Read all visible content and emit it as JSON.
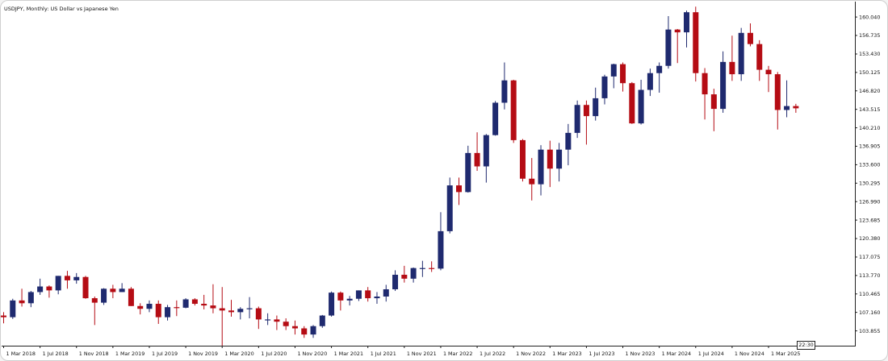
{
  "chart_title": "USDJPY, Monthly:  US Dollar vs Japanese Yen",
  "time_label": "22:30",
  "colors": {
    "up": "#1f2a6f",
    "down": "#b50c14",
    "axis": "#222222",
    "text": "#111111"
  },
  "chart_data": {
    "type": "candlestick",
    "symbol": "USDJPY",
    "timeframe": "Monthly",
    "ylim": [
      101.2,
      162.8
    ],
    "y_ticks": [
      "103.855",
      "107.160",
      "110.465",
      "113.770",
      "117.075",
      "120.380",
      "123.685",
      "126.990",
      "130.295",
      "133.600",
      "136.905",
      "140.210",
      "143.515",
      "146.820",
      "150.125",
      "153.430",
      "156.735",
      "160.040"
    ],
    "x_ticks": [
      "1 Mar 2018",
      "1 Jul 2018",
      "1 Nov 2018",
      "1 Mar 2019",
      "1 Jul 2019",
      "1 Nov 2019",
      "1 Mar 2020",
      "1 Jul 2020",
      "1 Nov 2020",
      "1 Mar 2021",
      "1 Jul 2021",
      "1 Nov 2021",
      "1 Mar 2022",
      "1 Jul 2022",
      "1 Nov 2022",
      "1 Mar 2023",
      "1 Jul 2023",
      "1 Nov 2023",
      "1 Mar 2024",
      "1 Jul 2024",
      "1 Nov 2024",
      "1 Mar 2025"
    ],
    "candles": [
      {
        "d": "2018-03",
        "o": 106.6,
        "h": 107.2,
        "l": 105.2,
        "c": 106.3
      },
      {
        "d": "2018-04",
        "o": 106.3,
        "h": 109.6,
        "l": 106.0,
        "c": 109.3
      },
      {
        "d": "2018-05",
        "o": 109.3,
        "h": 111.4,
        "l": 108.2,
        "c": 108.8
      },
      {
        "d": "2018-06",
        "o": 108.8,
        "h": 111.0,
        "l": 108.1,
        "c": 110.8
      },
      {
        "d": "2018-07",
        "o": 110.8,
        "h": 113.2,
        "l": 110.3,
        "c": 111.8
      },
      {
        "d": "2018-08",
        "o": 111.8,
        "h": 112.0,
        "l": 109.8,
        "c": 111.1
      },
      {
        "d": "2018-09",
        "o": 111.1,
        "h": 113.7,
        "l": 110.4,
        "c": 113.7
      },
      {
        "d": "2018-10",
        "o": 113.7,
        "h": 114.6,
        "l": 111.4,
        "c": 112.9
      },
      {
        "d": "2018-11",
        "o": 112.9,
        "h": 114.2,
        "l": 112.3,
        "c": 113.5
      },
      {
        "d": "2018-12",
        "o": 113.5,
        "h": 113.7,
        "l": 109.6,
        "c": 109.7
      },
      {
        "d": "2019-01",
        "o": 109.7,
        "h": 110.0,
        "l": 104.9,
        "c": 108.9
      },
      {
        "d": "2019-02",
        "o": 108.9,
        "h": 111.5,
        "l": 108.5,
        "c": 111.4
      },
      {
        "d": "2019-03",
        "o": 111.4,
        "h": 112.1,
        "l": 109.7,
        "c": 110.8
      },
      {
        "d": "2019-04",
        "o": 110.8,
        "h": 112.4,
        "l": 110.8,
        "c": 111.4
      },
      {
        "d": "2019-05",
        "o": 111.4,
        "h": 111.7,
        "l": 108.3,
        "c": 108.3
      },
      {
        "d": "2019-06",
        "o": 108.3,
        "h": 108.8,
        "l": 106.8,
        "c": 107.8
      },
      {
        "d": "2019-07",
        "o": 107.8,
        "h": 109.3,
        "l": 107.2,
        "c": 108.7
      },
      {
        "d": "2019-08",
        "o": 108.7,
        "h": 109.3,
        "l": 105.1,
        "c": 106.3
      },
      {
        "d": "2019-09",
        "o": 106.3,
        "h": 108.5,
        "l": 105.7,
        "c": 108.1
      },
      {
        "d": "2019-10",
        "o": 108.1,
        "h": 109.3,
        "l": 106.5,
        "c": 108.0
      },
      {
        "d": "2019-11",
        "o": 108.0,
        "h": 109.7,
        "l": 107.9,
        "c": 109.5
      },
      {
        "d": "2019-12",
        "o": 109.5,
        "h": 109.7,
        "l": 108.4,
        "c": 108.7
      },
      {
        "d": "2020-01",
        "o": 108.7,
        "h": 110.3,
        "l": 107.7,
        "c": 108.4
      },
      {
        "d": "2020-02",
        "o": 108.4,
        "h": 112.2,
        "l": 107.0,
        "c": 107.9
      },
      {
        "d": "2020-03",
        "o": 107.9,
        "h": 111.7,
        "l": 101.2,
        "c": 107.5
      },
      {
        "d": "2020-04",
        "o": 107.5,
        "h": 109.4,
        "l": 106.4,
        "c": 107.2
      },
      {
        "d": "2020-05",
        "o": 107.2,
        "h": 108.1,
        "l": 105.9,
        "c": 107.8
      },
      {
        "d": "2020-06",
        "o": 107.8,
        "h": 109.9,
        "l": 106.1,
        "c": 107.9
      },
      {
        "d": "2020-07",
        "o": 107.9,
        "h": 108.2,
        "l": 104.2,
        "c": 105.9
      },
      {
        "d": "2020-08",
        "o": 105.9,
        "h": 107.0,
        "l": 104.9,
        "c": 105.9
      },
      {
        "d": "2020-09",
        "o": 105.9,
        "h": 106.6,
        "l": 104.0,
        "c": 105.5
      },
      {
        "d": "2020-10",
        "o": 105.5,
        "h": 106.1,
        "l": 104.0,
        "c": 104.7
      },
      {
        "d": "2020-11",
        "o": 104.7,
        "h": 105.7,
        "l": 103.2,
        "c": 104.3
      },
      {
        "d": "2020-12",
        "o": 104.3,
        "h": 104.7,
        "l": 102.6,
        "c": 103.2
      },
      {
        "d": "2021-01",
        "o": 103.2,
        "h": 104.9,
        "l": 102.6,
        "c": 104.7
      },
      {
        "d": "2021-02",
        "o": 104.7,
        "h": 106.7,
        "l": 104.4,
        "c": 106.6
      },
      {
        "d": "2021-03",
        "o": 106.6,
        "h": 110.9,
        "l": 106.4,
        "c": 110.7
      },
      {
        "d": "2021-04",
        "o": 110.7,
        "h": 110.9,
        "l": 107.5,
        "c": 109.3
      },
      {
        "d": "2021-05",
        "o": 109.3,
        "h": 110.1,
        "l": 108.4,
        "c": 109.6
      },
      {
        "d": "2021-06",
        "o": 109.6,
        "h": 111.1,
        "l": 109.2,
        "c": 111.1
      },
      {
        "d": "2021-07",
        "o": 111.1,
        "h": 111.7,
        "l": 109.1,
        "c": 109.7
      },
      {
        "d": "2021-08",
        "o": 109.7,
        "h": 110.8,
        "l": 108.7,
        "c": 110.0
      },
      {
        "d": "2021-09",
        "o": 110.0,
        "h": 112.1,
        "l": 109.1,
        "c": 111.3
      },
      {
        "d": "2021-10",
        "o": 111.3,
        "h": 114.7,
        "l": 111.0,
        "c": 113.9
      },
      {
        "d": "2021-11",
        "o": 113.9,
        "h": 115.5,
        "l": 112.5,
        "c": 113.2
      },
      {
        "d": "2021-12",
        "o": 113.2,
        "h": 115.2,
        "l": 112.5,
        "c": 115.1
      },
      {
        "d": "2022-01",
        "o": 115.1,
        "h": 116.4,
        "l": 113.5,
        "c": 115.1
      },
      {
        "d": "2022-02",
        "o": 115.1,
        "h": 116.3,
        "l": 114.4,
        "c": 115.0
      },
      {
        "d": "2022-03",
        "o": 115.0,
        "h": 125.1,
        "l": 114.7,
        "c": 121.7
      },
      {
        "d": "2022-04",
        "o": 121.7,
        "h": 131.3,
        "l": 121.3,
        "c": 129.9
      },
      {
        "d": "2022-05",
        "o": 129.9,
        "h": 131.3,
        "l": 126.4,
        "c": 128.7
      },
      {
        "d": "2022-06",
        "o": 128.7,
        "h": 137.0,
        "l": 128.6,
        "c": 135.7
      },
      {
        "d": "2022-07",
        "o": 135.7,
        "h": 139.4,
        "l": 132.5,
        "c": 133.3
      },
      {
        "d": "2022-08",
        "o": 133.3,
        "h": 139.1,
        "l": 130.4,
        "c": 138.9
      },
      {
        "d": "2022-09",
        "o": 138.9,
        "h": 145.0,
        "l": 138.8,
        "c": 144.7
      },
      {
        "d": "2022-10",
        "o": 144.7,
        "h": 151.9,
        "l": 143.5,
        "c": 148.7
      },
      {
        "d": "2022-11",
        "o": 148.7,
        "h": 148.8,
        "l": 137.5,
        "c": 138.0
      },
      {
        "d": "2022-12",
        "o": 138.0,
        "h": 138.2,
        "l": 130.6,
        "c": 131.1
      },
      {
        "d": "2023-01",
        "o": 131.1,
        "h": 134.8,
        "l": 127.2,
        "c": 130.1
      },
      {
        "d": "2023-02",
        "o": 130.1,
        "h": 137.1,
        "l": 128.1,
        "c": 136.3
      },
      {
        "d": "2023-03",
        "o": 136.3,
        "h": 137.9,
        "l": 129.6,
        "c": 132.9
      },
      {
        "d": "2023-04",
        "o": 132.9,
        "h": 137.5,
        "l": 130.6,
        "c": 136.3
      },
      {
        "d": "2023-05",
        "o": 136.3,
        "h": 140.9,
        "l": 133.5,
        "c": 139.3
      },
      {
        "d": "2023-06",
        "o": 139.3,
        "h": 145.1,
        "l": 138.4,
        "c": 144.3
      },
      {
        "d": "2023-07",
        "o": 144.3,
        "h": 145.1,
        "l": 137.2,
        "c": 142.3
      },
      {
        "d": "2023-08",
        "o": 142.3,
        "h": 147.4,
        "l": 141.5,
        "c": 145.5
      },
      {
        "d": "2023-09",
        "o": 145.5,
        "h": 149.7,
        "l": 144.4,
        "c": 149.4
      },
      {
        "d": "2023-10",
        "o": 149.4,
        "h": 151.7,
        "l": 147.3,
        "c": 151.6
      },
      {
        "d": "2023-11",
        "o": 151.6,
        "h": 151.9,
        "l": 146.7,
        "c": 148.2
      },
      {
        "d": "2023-12",
        "o": 148.2,
        "h": 148.4,
        "l": 140.9,
        "c": 141.0
      },
      {
        "d": "2024-01",
        "o": 141.0,
        "h": 148.8,
        "l": 140.8,
        "c": 147.0
      },
      {
        "d": "2024-02",
        "o": 147.0,
        "h": 150.8,
        "l": 145.9,
        "c": 150.0
      },
      {
        "d": "2024-03",
        "o": 150.0,
        "h": 151.9,
        "l": 146.5,
        "c": 151.3
      },
      {
        "d": "2024-04",
        "o": 151.3,
        "h": 160.2,
        "l": 150.8,
        "c": 157.8
      },
      {
        "d": "2024-05",
        "o": 157.8,
        "h": 157.9,
        "l": 151.8,
        "c": 157.3
      },
      {
        "d": "2024-06",
        "o": 157.3,
        "h": 161.2,
        "l": 154.6,
        "c": 160.9
      },
      {
        "d": "2024-07",
        "o": 160.9,
        "h": 161.9,
        "l": 148.5,
        "c": 150.0
      },
      {
        "d": "2024-08",
        "o": 150.0,
        "h": 150.9,
        "l": 141.7,
        "c": 146.2
      },
      {
        "d": "2024-09",
        "o": 146.2,
        "h": 147.2,
        "l": 139.6,
        "c": 143.6
      },
      {
        "d": "2024-10",
        "o": 143.6,
        "h": 153.9,
        "l": 142.9,
        "c": 152.0
      },
      {
        "d": "2024-11",
        "o": 152.0,
        "h": 156.7,
        "l": 148.6,
        "c": 149.8
      },
      {
        "d": "2024-12",
        "o": 149.8,
        "h": 158.1,
        "l": 148.6,
        "c": 157.2
      },
      {
        "d": "2025-01",
        "o": 157.2,
        "h": 158.9,
        "l": 154.8,
        "c": 155.2
      },
      {
        "d": "2025-02",
        "o": 155.2,
        "h": 155.9,
        "l": 148.6,
        "c": 150.6
      },
      {
        "d": "2025-03",
        "o": 150.6,
        "h": 151.3,
        "l": 146.6,
        "c": 149.8
      },
      {
        "d": "2025-04",
        "o": 149.8,
        "h": 150.2,
        "l": 139.9,
        "c": 143.4
      },
      {
        "d": "2025-05",
        "o": 143.4,
        "h": 148.7,
        "l": 142.1,
        "c": 144.1
      },
      {
        "d": "2025-06",
        "o": 144.1,
        "h": 144.5,
        "l": 142.9,
        "c": 143.7
      }
    ]
  }
}
